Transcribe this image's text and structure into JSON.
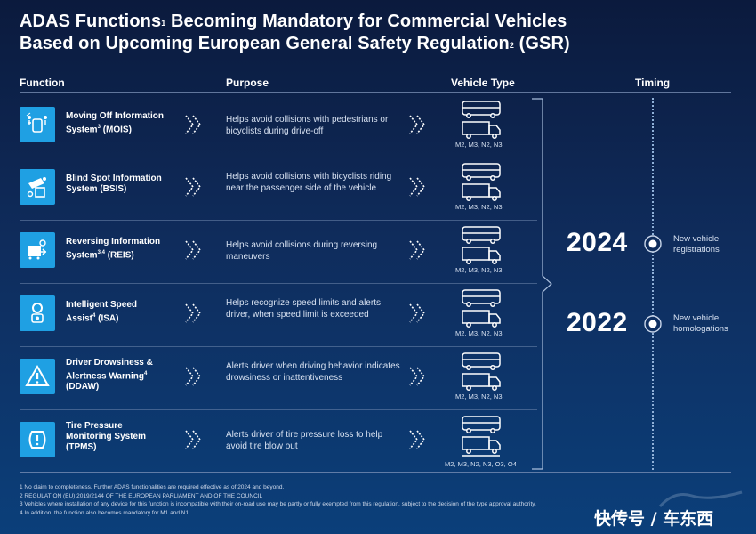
{
  "title": {
    "line1_a": "ADAS Functions",
    "line1_sup": "1",
    "line1_b": " Becoming Mandatory for Commercial Vehicles",
    "line2_a": "Based on Upcoming European General Safety Regulation",
    "line2_sup": "2",
    "line2_b": " (GSR)"
  },
  "headers": {
    "function": "Function",
    "purpose": "Purpose",
    "vehicle_type": "Vehicle Type",
    "timing": "Timing"
  },
  "rows": [
    {
      "name_a": "Moving Off Information",
      "name_b": "System",
      "sup": "3",
      "name_c": " (MOIS)",
      "purpose": "Helps avoid collisions with pedestrians or bicyclists during drive-off",
      "vehicles": "M2, M3, N2, N3",
      "icon": "moving-off-icon"
    },
    {
      "name_a": "Blind Spot Information",
      "name_b": "System (BSIS)",
      "sup": "",
      "name_c": "",
      "purpose": "Helps avoid collisions with bicyclists riding near the passenger side of the vehicle",
      "vehicles": "M2, M3, N2, N3",
      "icon": "blind-spot-icon"
    },
    {
      "name_a": "Reversing Information",
      "name_b": "System",
      "sup": "3,4",
      "name_c": " (REIS)",
      "purpose": "Helps avoid collisions during reversing maneuvers",
      "vehicles": "M2, M3, N2, N3",
      "icon": "reversing-icon"
    },
    {
      "name_a": "Intelligent Speed",
      "name_b": "Assist",
      "sup": "4",
      "name_c": " (ISA)",
      "purpose": "Helps recognize speed limits and alerts driver, when speed limit is exceeded",
      "vehicles": "M2, M3, N2, N3",
      "icon": "speed-sign-icon"
    },
    {
      "name_a": "Driver Drowsiness &",
      "name_b": "Alertness Warning",
      "sup": "4",
      "name_c": "",
      "name_d": "(DDAW)",
      "purpose": "Alerts driver when driving behavior indicates drowsiness or inattentiveness",
      "vehicles": "M2, M3, N2, N3",
      "icon": "drowsiness-warning-icon"
    },
    {
      "name_a": "Tire Pressure",
      "name_b": "Monitoring System",
      "sup": "",
      "name_c": "",
      "name_d": "(TPMS)",
      "purpose": "Alerts driver of tire pressure loss to help avoid tire blow out",
      "vehicles": "M2, M3, N2, N3, O3, O4",
      "icon": "tire-pressure-icon"
    }
  ],
  "timing": [
    {
      "year": "2024",
      "note_1": "New vehicle",
      "note_2": "registrations"
    },
    {
      "year": "2022",
      "note_1": "New vehicle",
      "note_2": "homologations"
    }
  ],
  "footnotes": [
    "1 No claim to completeness. Further ADAS functionalities are required effective as of 2024 and beyond.",
    "2 REGULATION (EU) 2019/2144 OF THE EUROPEAN PARLIAMENT AND OF THE COUNCIL",
    "3 Vehicles where installation of any device for this function is incompatible with their on-road use may be partly or fully exempted from this regulation, subject to the decision of the type approval authority.",
    "4 In addition, the function also becomes mandatory for M1 and N1."
  ],
  "watermark": {
    "text": "快传号 / 车东西"
  },
  "colors": {
    "background_top": "#0b1a3d",
    "background_bottom": "#0b3f7a",
    "icon_blue": "#1fa0e3"
  }
}
